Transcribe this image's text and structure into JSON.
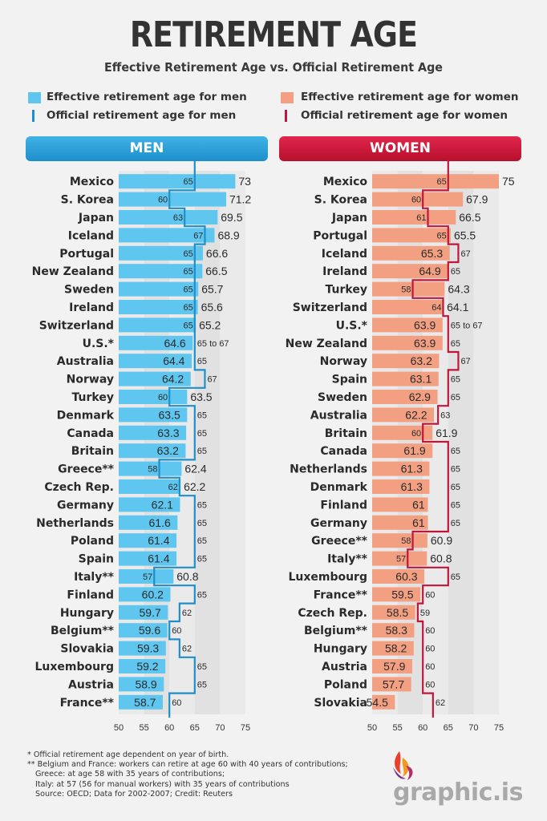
{
  "title": "RETIREMENT AGE",
  "subtitle": "Effective Retirement Age vs. Official Retirement Age",
  "legend": {
    "men_effective": "Effective retirement age for men",
    "men_official": "Official retirement age for men",
    "women_effective": "Effective retirement age for women",
    "women_official": "Official retirement age for women"
  },
  "colors": {
    "men_bar": "#5ec6ef",
    "men_line": "#1f8fc9",
    "women_bar": "#f3a082",
    "women_line": "#c0163b"
  },
  "footnotes": [
    "*  Official retirement age dependent on year of birth.",
    "** Belgium and France: workers can retire at age 60 with 40 years of contributions;",
    "Greece: at age 58 with 35 years of contributions;",
    "Italy: at 57 (56 for manual workers) with 35 years of contributions",
    "Source: OECD; Data for 2002-2007; Credit: Reuters"
  ],
  "logo_text": "graphic.is",
  "chart_data": [
    {
      "type": "bar",
      "title": "MEN",
      "xlim": [
        50,
        75
      ],
      "xticks": [
        50,
        55,
        60,
        65,
        70,
        75
      ],
      "categories": [
        "Mexico",
        "S. Korea",
        "Japan",
        "Iceland",
        "Portugal",
        "New Zealand",
        "Sweden",
        "Ireland",
        "Switzerland",
        "U.S.*",
        "Australia",
        "Norway",
        "Turkey",
        "Denmark",
        "Canada",
        "Britain",
        "Greece**",
        "Czech Rep.",
        "Germany",
        "Netherlands",
        "Poland",
        "Spain",
        "Italy**",
        "Finland",
        "Hungary",
        "Belgium**",
        "Slovakia",
        "Luxembourg",
        "Austria",
        "France**"
      ],
      "series": [
        {
          "name": "Effective retirement age for men",
          "values": [
            73,
            71.2,
            69.5,
            68.9,
            66.6,
            66.5,
            65.7,
            65.6,
            65.2,
            64.6,
            64.4,
            64.2,
            63.5,
            63.5,
            63.3,
            63.2,
            62.4,
            62.2,
            62.1,
            61.6,
            61.4,
            61.4,
            60.8,
            60.2,
            59.7,
            59.6,
            59.3,
            59.2,
            58.9,
            58.7
          ]
        },
        {
          "name": "Official retirement age for men",
          "values": [
            65,
            60,
            63,
            67,
            65,
            65,
            65,
            65,
            65,
            65,
            65,
            67,
            60,
            65,
            65,
            65,
            58,
            62,
            65,
            65,
            65,
            65,
            57,
            65,
            62,
            60,
            62,
            65,
            65,
            60
          ],
          "labels": [
            "65",
            "60",
            "63",
            "67",
            "65",
            "65",
            "65",
            "65",
            "65",
            "65 to 67",
            "65",
            "67",
            "60",
            "65",
            "65",
            "65",
            "58",
            "62",
            "65",
            "65",
            "65",
            "65",
            "57",
            "65",
            "62",
            "60",
            "62",
            "65",
            "65",
            "60"
          ]
        }
      ]
    },
    {
      "type": "bar",
      "title": "WOMEN",
      "xlim": [
        50,
        75
      ],
      "xticks": [
        50,
        55,
        60,
        65,
        70,
        75
      ],
      "categories": [
        "Mexico",
        "S. Korea",
        "Japan",
        "Portugal",
        "Iceland",
        "Ireland",
        "Turkey",
        "Switzerland",
        "U.S.*",
        "New Zealand",
        "Norway",
        "Spain",
        "Sweden",
        "Australia",
        "Britain",
        "Canada",
        "Netherlands",
        "Denmark",
        "Finland",
        "Germany",
        "Greece**",
        "Italy**",
        "Luxembourg",
        "France**",
        "Czech Rep.",
        "Belgium**",
        "Hungary",
        "Austria",
        "Poland",
        "Slovakia"
      ],
      "series": [
        {
          "name": "Effective retirement age for women",
          "values": [
            75,
            67.9,
            66.5,
            65.5,
            65.3,
            64.9,
            64.3,
            64.1,
            63.9,
            63.9,
            63.2,
            63.1,
            62.9,
            62.2,
            61.9,
            61.9,
            61.3,
            61.3,
            61,
            61,
            60.9,
            60.8,
            60.3,
            59.5,
            58.5,
            58.3,
            58.2,
            57.9,
            57.7,
            54.5
          ]
        },
        {
          "name": "Official retirement age for women",
          "values": [
            65,
            60,
            61,
            65,
            67,
            65,
            58,
            64,
            65,
            65,
            67,
            65,
            65,
            63,
            60,
            65,
            65,
            65,
            65,
            65,
            58,
            57,
            65,
            60,
            59,
            60,
            60,
            60,
            60,
            62
          ],
          "labels": [
            "65",
            "60",
            "61",
            "65",
            "67",
            "65",
            "58",
            "64",
            "65 to 67",
            "65",
            "67",
            "65",
            "65",
            "63",
            "60",
            "65",
            "65",
            "65",
            "65",
            "65",
            "58",
            "57",
            "65",
            "60",
            "59",
            "60",
            "60",
            "60",
            "60",
            "62"
          ]
        }
      ]
    }
  ]
}
